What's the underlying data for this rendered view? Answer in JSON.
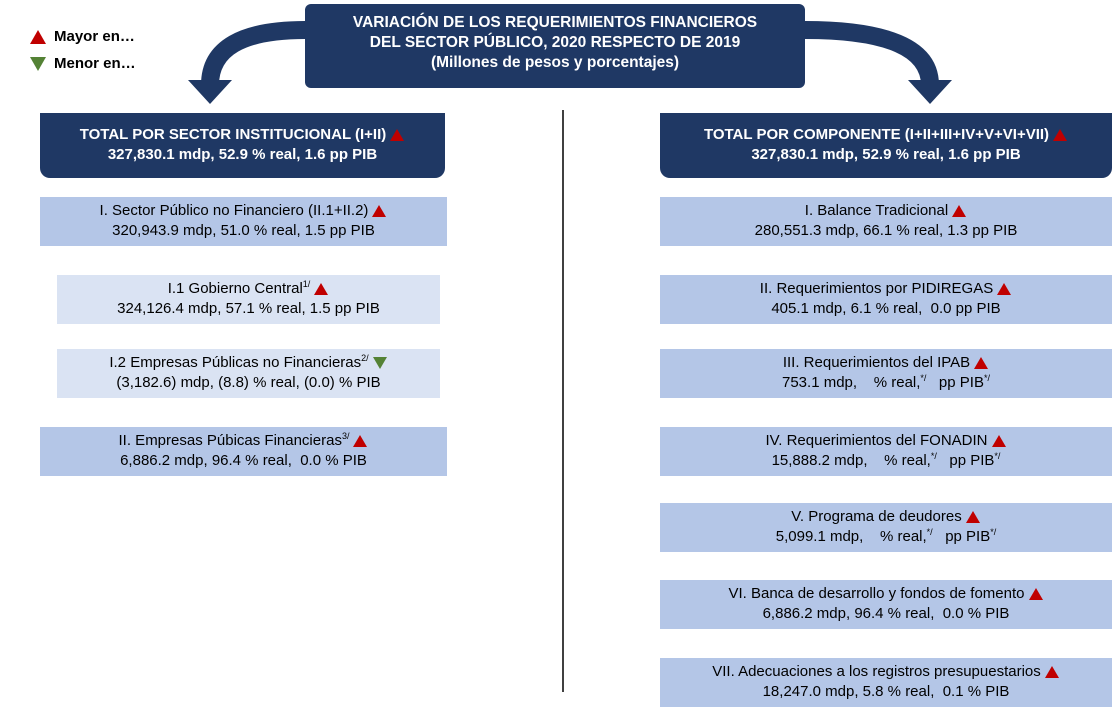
{
  "legend": {
    "up": "Mayor en…",
    "down": "Menor en…"
  },
  "title": {
    "lines": [
      "VARIACIÓN DE LOS REQUERIMIENTOS FINANCIEROS",
      "DEL SECTOR PÚBLICO, 2020 RESPECTO DE 2019",
      "(Millones de pesos y porcentajes)"
    ]
  },
  "left": {
    "header": {
      "line1": [
        "TOTAL POR SECTOR INSTITUCIONAL (I+II)"
      ],
      "line2": [
        "327,830.1 mdp, 52.9 % real, 1.6 pp PIB"
      ],
      "trend": "up"
    },
    "items": [
      {
        "line1": [
          "I. Sector Público no Financiero (II.1+II.2)"
        ],
        "line2": [
          "320,943.9 mdp, 51.0 % real, 1.5 pp PIB"
        ],
        "trend": "up"
      },
      {
        "line1": [
          "I.1 Gobierno Central",
          "1/"
        ],
        "line2": [
          "324,126.4 mdp, 57.1 % real, 1.5 pp PIB"
        ],
        "trend": "up"
      },
      {
        "line1": [
          "I.2 Empresas Públicas no Financieras",
          "2/"
        ],
        "line2": [
          "(3,182.6) mdp, (8.8) % real, (0.0) % PIB"
        ],
        "trend": "down"
      },
      {
        "line1": [
          "II. Empresas Púbicas Financieras",
          "3/"
        ],
        "line2": [
          "6,886.2 mdp, 96.4 % real,  0.0 % PIB"
        ],
        "trend": "up"
      }
    ]
  },
  "right": {
    "header": {
      "line1": [
        "TOTAL POR COMPONENTE (I+II+III+IV+V+VI+VII)"
      ],
      "line2": [
        "327,830.1 mdp, 52.9 % real, 1.6 pp PIB"
      ],
      "trend": "up"
    },
    "items": [
      {
        "line1": [
          "I. Balance Tradicional"
        ],
        "line2": [
          "280,551.3 mdp, 66.1 % real, 1.3 pp PIB"
        ],
        "trend": "up"
      },
      {
        "line1": [
          "II. Requerimientos por PIDIREGAS"
        ],
        "line2": [
          "405.1 mdp, 6.1 % real,  0.0 pp PIB"
        ],
        "trend": "up"
      },
      {
        "line1": [
          "III. Requerimientos del IPAB"
        ],
        "line2": [
          "753.1 mdp,    % real,",
          "*/",
          "   pp PIB",
          "*/"
        ],
        "trend": "up"
      },
      {
        "line1": [
          "IV. Requerimientos del FONADIN"
        ],
        "line2": [
          "15,888.2 mdp,    % real,",
          "*/",
          "   pp PIB",
          "*/"
        ],
        "trend": "up"
      },
      {
        "line1": [
          "V. Programa de deudores"
        ],
        "line2": [
          "5,099.1 mdp,    % real,",
          "*/",
          "   pp PIB",
          "*/"
        ],
        "trend": "up"
      },
      {
        "line1": [
          "VI. Banca de desarrollo y fondos de fomento"
        ],
        "line2": [
          "6,886.2 mdp, 96.4 % real,  0.0 % PIB"
        ],
        "trend": "up"
      },
      {
        "line1": [
          "VII. Adecuaciones a los registros presupuestarios"
        ],
        "line2": [
          "18,247.0 mdp, 5.8 % real,  0.1 % PIB"
        ],
        "trend": "up"
      }
    ]
  }
}
